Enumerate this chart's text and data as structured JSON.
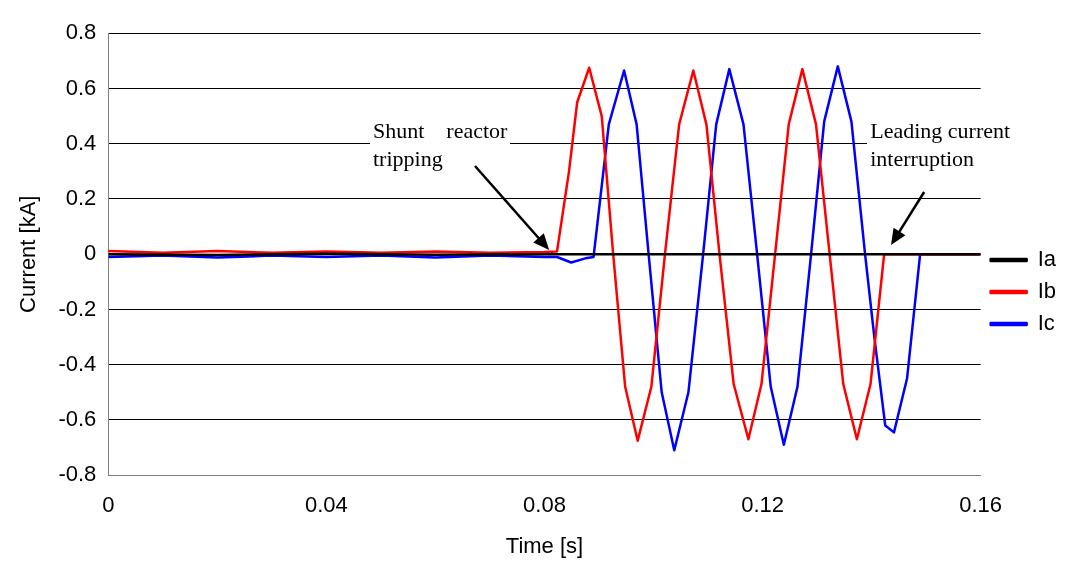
{
  "chart_data": {
    "type": "line",
    "xlabel": "Time [s]",
    "ylabel": "Current [kA]",
    "xlim": [
      0,
      0.16
    ],
    "xticks": [
      0,
      0.04,
      0.08,
      0.12,
      0.16
    ],
    "ylim": [
      -0.8,
      0.8
    ],
    "yticks": [
      -0.8,
      -0.6,
      -0.4,
      -0.2,
      0,
      0.2,
      0.4,
      0.6,
      0.8
    ],
    "grid": "y",
    "legend": "right",
    "marker": "none",
    "line_style": "solid",
    "annotations": [
      "Shunt    reactor\ntripping",
      "Leading current\ninterruption"
    ],
    "series": [
      {
        "name": "Ia",
        "color": "#000000",
        "x": [
          0,
          0.02,
          0.04,
          0.06,
          0.08,
          0.1,
          0.12,
          0.14,
          0.16
        ],
        "values": [
          0,
          -0.003,
          0.002,
          -0.002,
          0,
          0,
          0,
          0,
          0
        ]
      },
      {
        "name": "Ib",
        "color": "#ff0000",
        "x": [
          0,
          0.01,
          0.02,
          0.03,
          0.04,
          0.05,
          0.06,
          0.07,
          0.08,
          0.0823,
          0.0845,
          0.086,
          0.0882,
          0.0905,
          0.0926,
          0.0948,
          0.0971,
          0.0996,
          0.1021,
          0.1047,
          0.1073,
          0.1097,
          0.1121,
          0.1147,
          0.1174,
          0.1198,
          0.1223,
          0.1248,
          0.1273,
          0.1298,
          0.1323,
          0.1348,
          0.1373,
          0.1398,
          0.1423,
          0.16
        ],
        "values": [
          0.012,
          0.005,
          0.012,
          0.005,
          0.01,
          0.005,
          0.01,
          0.005,
          0.008,
          0.01,
          0.3,
          0.55,
          0.675,
          0.5,
          0,
          -0.48,
          -0.675,
          -0.48,
          0,
          0.47,
          0.665,
          0.47,
          0,
          -0.47,
          -0.67,
          -0.47,
          0,
          0.47,
          0.67,
          0.47,
          0,
          -0.47,
          -0.67,
          -0.47,
          0,
          0
        ]
      },
      {
        "name": "Ic",
        "color": "#0000ff",
        "x": [
          0,
          0.01,
          0.02,
          0.03,
          0.04,
          0.05,
          0.06,
          0.07,
          0.08,
          0.0823,
          0.0849,
          0.0875,
          0.089,
          0.0918,
          0.0946,
          0.0969,
          0.0991,
          0.1015,
          0.1038,
          0.1064,
          0.1091,
          0.1115,
          0.1139,
          0.1165,
          0.119,
          0.1215,
          0.1239,
          0.1264,
          0.1289,
          0.1313,
          0.1338,
          0.1363,
          0.1388,
          0.1405,
          0.1425,
          0.1441,
          0.1465,
          0.1489,
          0.16
        ],
        "values": [
          -0.01,
          -0.005,
          -0.012,
          -0.005,
          -0.01,
          -0.005,
          -0.012,
          -0.005,
          -0.01,
          -0.01,
          -0.03,
          -0.015,
          -0.01,
          0.47,
          0.665,
          0.47,
          0,
          -0.5,
          -0.71,
          -0.5,
          0,
          0.47,
          0.67,
          0.47,
          0,
          -0.48,
          -0.69,
          -0.48,
          0,
          0.48,
          0.68,
          0.48,
          0,
          -0.3,
          -0.62,
          -0.645,
          -0.45,
          0,
          0
        ]
      }
    ]
  }
}
